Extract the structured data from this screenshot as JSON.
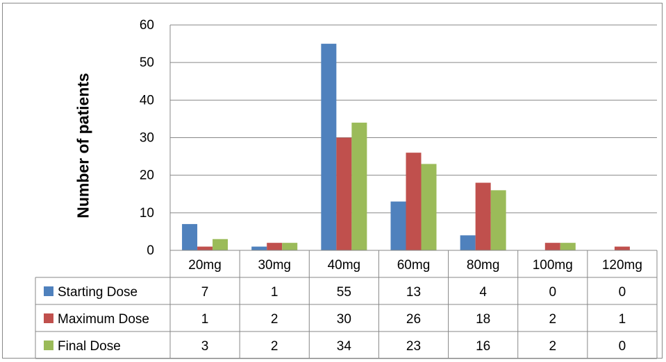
{
  "chart_data": {
    "type": "bar",
    "ylabel": "Number of patients",
    "xlabel": "",
    "ylim": [
      0,
      60
    ],
    "yticks": [
      "0",
      "10",
      "20",
      "30",
      "40",
      "50",
      "60"
    ],
    "ytick_values": [
      0,
      10,
      20,
      30,
      40,
      50,
      60
    ],
    "grid": true,
    "legend": "data-table",
    "categories": [
      "20mg",
      "30mg",
      "40mg",
      "60mg",
      "80mg",
      "100mg",
      "120mg"
    ],
    "series": [
      {
        "name": "Starting Dose",
        "color": "#4F81BD",
        "values": [
          7,
          1,
          55,
          13,
          4,
          0,
          0
        ]
      },
      {
        "name": "Maximum Dose",
        "color": "#C0504D",
        "values": [
          1,
          2,
          30,
          26,
          18,
          2,
          1
        ]
      },
      {
        "name": "Final Dose",
        "color": "#9BBB59",
        "values": [
          3,
          2,
          34,
          23,
          16,
          2,
          0
        ]
      }
    ]
  }
}
